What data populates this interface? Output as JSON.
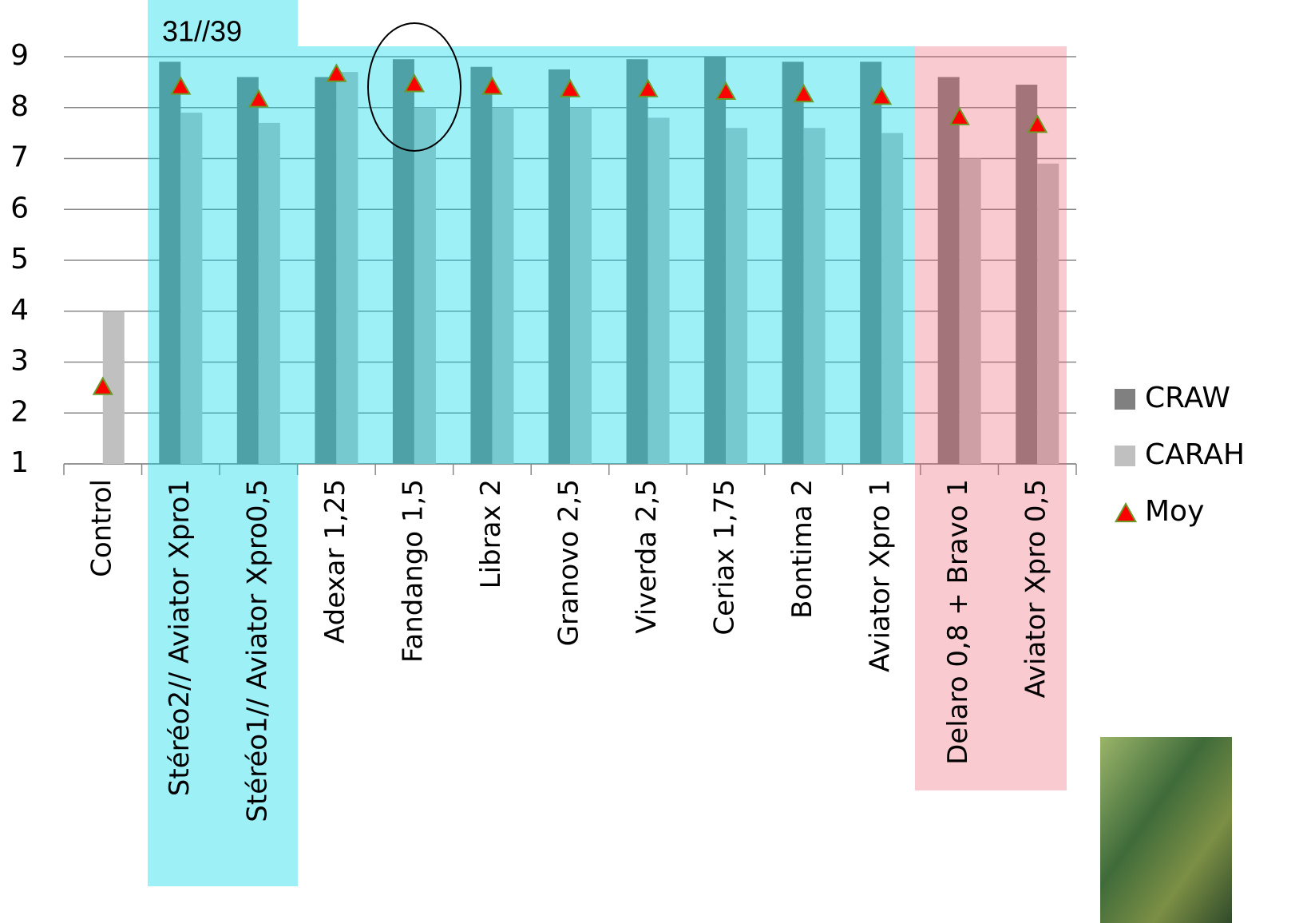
{
  "chart_data": {
    "type": "bar",
    "annotation": "31//39",
    "categories": [
      "Control",
      "Stéréo2// Aviator Xpro1",
      "Stéréo1// Aviator Xpro0,5",
      "Adexar 1,25",
      "Fandango 1,5",
      "Librax 2",
      "Granovo 2,5",
      "Viverda 2,5",
      "Ceriax 1,75",
      "Bontima 2",
      "Aviator Xpro 1",
      "Delaro 0,8 + Bravo 1",
      "Aviator Xpro 0,5"
    ],
    "series": [
      {
        "name": "CRAW",
        "color": "#808080",
        "values": [
          null,
          8.9,
          8.6,
          8.6,
          8.95,
          8.8,
          8.75,
          8.95,
          9.0,
          8.9,
          8.9,
          8.6,
          8.45
        ]
      },
      {
        "name": "CARAH",
        "color": "#c0c0c0",
        "values": [
          4.0,
          7.9,
          7.7,
          8.7,
          8.0,
          8.0,
          8.0,
          7.8,
          7.6,
          7.6,
          7.5,
          7.0,
          6.9
        ]
      },
      {
        "name": "Moy",
        "color": "#ff0000",
        "marker": "triangle",
        "values": [
          2.5,
          8.4,
          8.15,
          8.65,
          8.45,
          8.4,
          8.35,
          8.35,
          8.3,
          8.25,
          8.2,
          7.8,
          7.65
        ]
      }
    ],
    "ylim": [
      1,
      9
    ],
    "yticks": [
      1,
      2,
      3,
      4,
      5,
      6,
      7,
      8,
      9
    ],
    "grid": true
  }
}
